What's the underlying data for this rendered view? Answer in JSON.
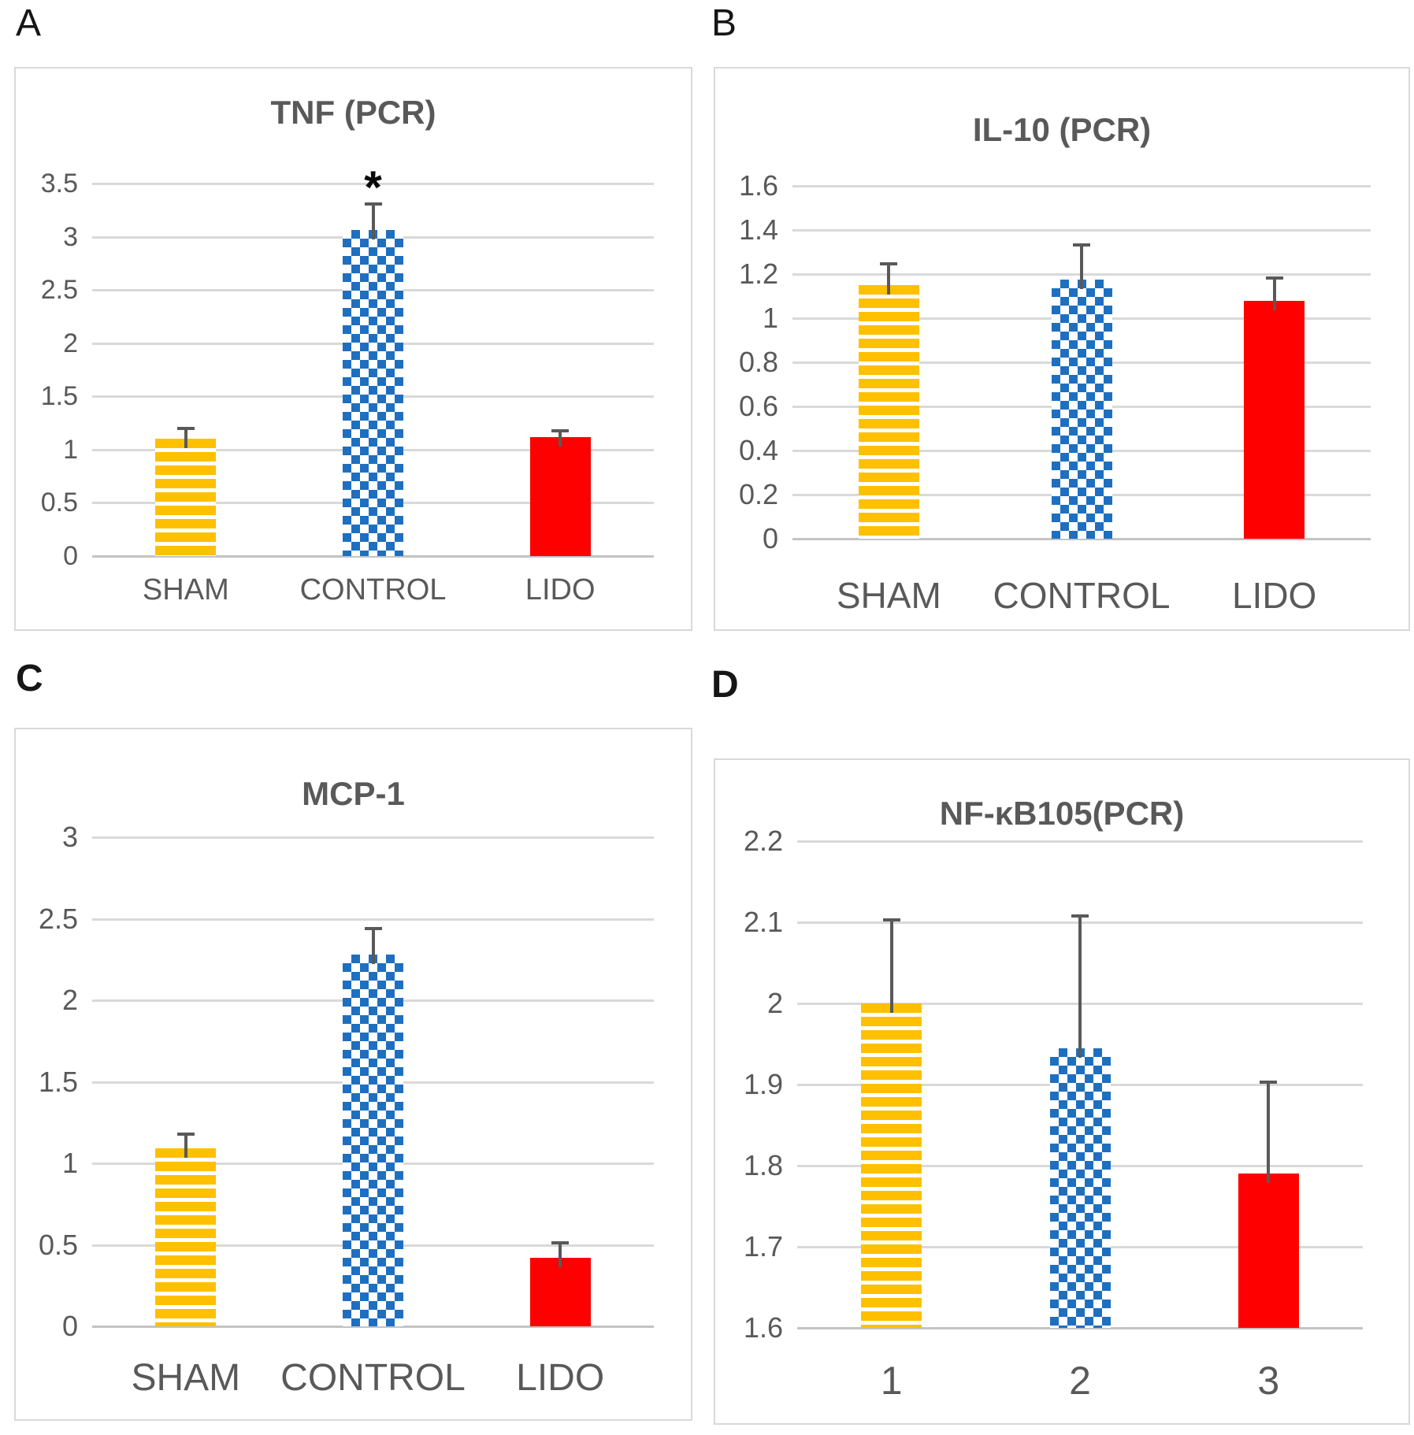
{
  "figure": {
    "description": "Four-panel bar chart figure of PCR cytokine results comparing SHAM, CONTROL and LIDO groups",
    "background": "#ffffff"
  },
  "colors": {
    "bar_yellow": "#FFC000",
    "bar_blue": "#1E6FC0",
    "bar_red": "#FF0000",
    "gridline": "#D9D9D9",
    "axis_baseline": "#C3C3C3",
    "error_bar": "#595959",
    "text_gray": "#595959",
    "letter_black": "#161616"
  },
  "chart_data": [
    {
      "panel_label": "A",
      "type": "bar",
      "title": "TNF (PCR)",
      "categories": [
        "SHAM",
        "CONTROL",
        "LIDO"
      ],
      "values": [
        1.1,
        3.06,
        1.12
      ],
      "error_top": [
        1.21,
        3.32,
        1.19
      ],
      "ylim": [
        0,
        3.5
      ],
      "ytick_labels": [
        "3.5",
        "3",
        "2.5",
        "2",
        "1.5",
        "1",
        "0.5",
        "0"
      ],
      "grid": true,
      "legend": "none",
      "annotations": [
        {
          "text": "*",
          "category_index": 1,
          "y": 3.5
        }
      ],
      "bar_styles": [
        {
          "pattern": "horizontal-stripes",
          "color": "#FFC000"
        },
        {
          "pattern": "checkerboard",
          "color": "#1E6FC0"
        },
        {
          "pattern": "solid",
          "color": "#FF0000"
        }
      ]
    },
    {
      "panel_label": "B",
      "type": "bar",
      "title": "IL-10 (PCR)",
      "categories": [
        "SHAM",
        "CONTROL",
        "LIDO"
      ],
      "values": [
        1.15,
        1.175,
        1.08
      ],
      "error_top": [
        1.255,
        1.34,
        1.19
      ],
      "ylim": [
        0,
        1.6
      ],
      "ytick_labels": [
        "1.6",
        "1.4",
        "1.2",
        "1",
        "0.8",
        "0.6",
        "0.4",
        "0.2",
        "0"
      ],
      "grid": true,
      "legend": "none",
      "annotations": [],
      "bar_styles": [
        {
          "pattern": "horizontal-stripes",
          "color": "#FFC000"
        },
        {
          "pattern": "checkerboard",
          "color": "#1E6FC0"
        },
        {
          "pattern": "solid",
          "color": "#FF0000"
        }
      ]
    },
    {
      "panel_label": "C",
      "type": "bar",
      "title": "MCP-1",
      "categories": [
        "SHAM",
        "CONTROL",
        "LIDO"
      ],
      "values": [
        1.09,
        2.28,
        0.42
      ],
      "error_top": [
        1.19,
        2.45,
        0.52
      ],
      "ylim": [
        0,
        3
      ],
      "ytick_labels": [
        "3",
        "2.5",
        "2",
        "1.5",
        "1",
        "0.5",
        "0"
      ],
      "grid": true,
      "legend": "none",
      "annotations": [],
      "bar_styles": [
        {
          "pattern": "horizontal-stripes",
          "color": "#FFC000"
        },
        {
          "pattern": "checkerboard",
          "color": "#1E6FC0"
        },
        {
          "pattern": "solid",
          "color": "#FF0000"
        }
      ]
    },
    {
      "panel_label": "D",
      "type": "bar",
      "title": "NF-κB105(PCR)",
      "categories": [
        "1",
        "2",
        "3"
      ],
      "values": [
        2.0,
        1.945,
        1.79
      ],
      "error_top": [
        2.105,
        2.11,
        1.905
      ],
      "ylim": [
        1.6,
        2.2
      ],
      "ytick_labels": [
        "2.2",
        "2.1",
        "2",
        "1.9",
        "1.8",
        "1.7",
        "1.6"
      ],
      "grid": true,
      "legend": "none",
      "annotations": [],
      "bar_styles": [
        {
          "pattern": "horizontal-stripes",
          "color": "#FFC000"
        },
        {
          "pattern": "checkerboard",
          "color": "#1E6FC0"
        },
        {
          "pattern": "solid",
          "color": "#FF0000"
        }
      ]
    }
  ]
}
